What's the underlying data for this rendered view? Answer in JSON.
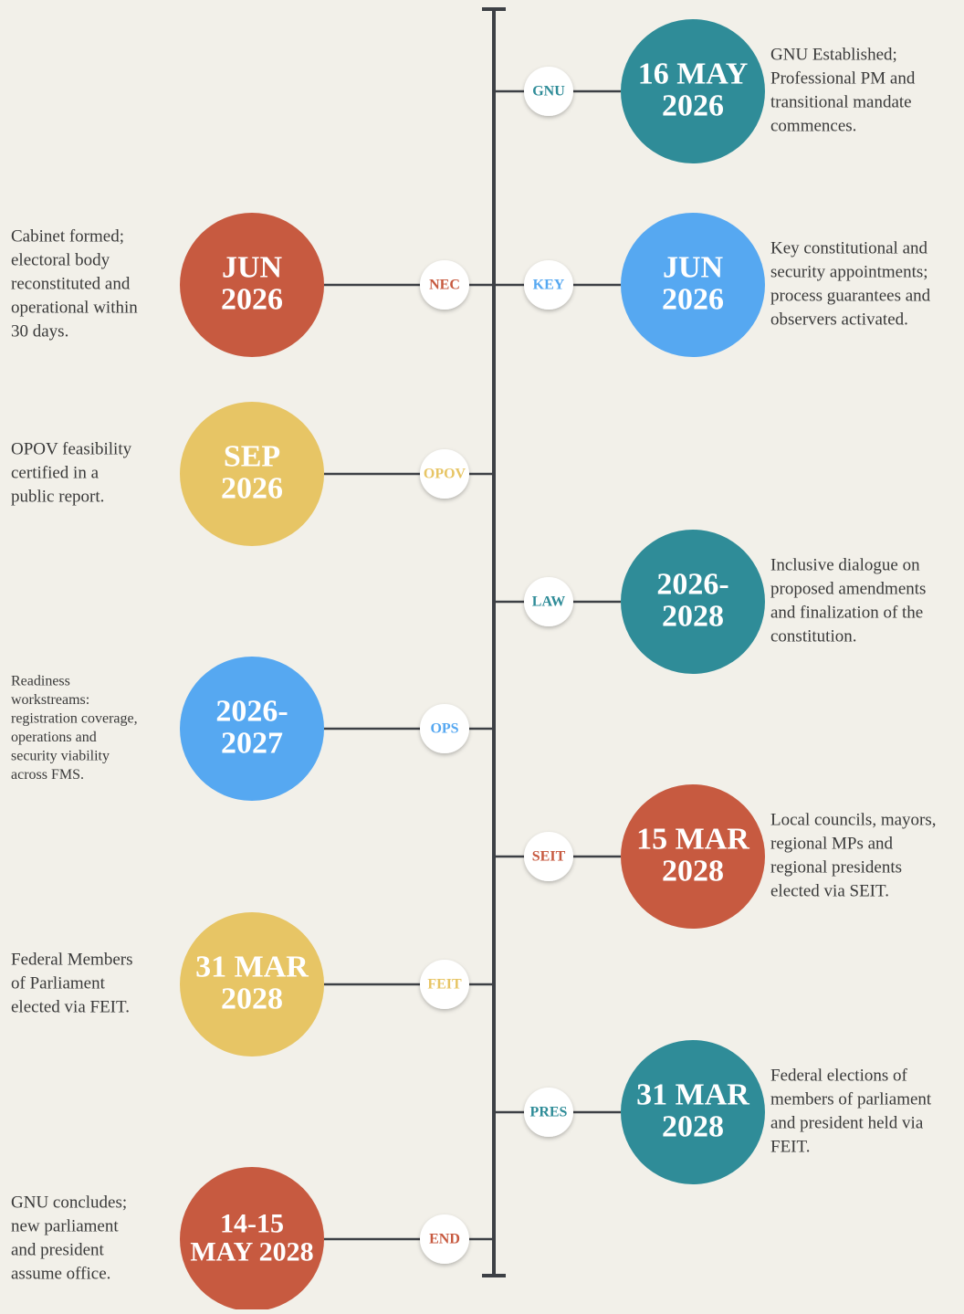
{
  "events": [
    {
      "date": [
        "16 MAY",
        "2026"
      ],
      "tag": "GNU",
      "color": "#2f8c98",
      "description": [
        "GNU Established;",
        "Professional PM and",
        "transitional mandate",
        "commences."
      ]
    },
    {
      "date": [
        "JUN",
        "2026"
      ],
      "tag": "NEC",
      "color": "#c75a40",
      "description": [
        "Cabinet formed;",
        "electoral body",
        "reconstituted and",
        "operational within",
        "30 days."
      ]
    },
    {
      "date": [
        "JUN",
        "2026"
      ],
      "tag": "KEY",
      "color": "#56a8f1",
      "description": [
        "Key constitutional and",
        "security appointments;",
        "process guarantees and",
        "observers activated."
      ]
    },
    {
      "date": [
        "SEP",
        "2026"
      ],
      "tag": "OPOV",
      "color": "#e7c565",
      "description": [
        "OPOV feasibility",
        "certified in a",
        "public report."
      ]
    },
    {
      "date": [
        "2026-",
        "2028"
      ],
      "tag": "LAW",
      "color": "#2f8c98",
      "description": [
        "Inclusive dialogue on",
        "proposed amendments",
        "and finalization of the",
        "constitution."
      ]
    },
    {
      "date": [
        "2026-",
        "2027"
      ],
      "tag": "OPS",
      "color": "#56a8f1",
      "description": [
        "Readiness",
        "workstreams:",
        "registration coverage,",
        "operations and",
        "security viability",
        "across FMS."
      ]
    },
    {
      "date": [
        "15 MAR",
        "2028"
      ],
      "tag": "SEIT",
      "color": "#c75a40",
      "description": [
        "Local councils, mayors,",
        "regional MPs and",
        "regional presidents",
        "elected via SEIT."
      ]
    },
    {
      "date": [
        "31 MAR",
        "2028"
      ],
      "tag": "FEIT",
      "color": "#e7c565",
      "description": [
        "Federal Members",
        "of Parliament",
        "elected via FEIT."
      ]
    },
    {
      "date": [
        "31 MAR",
        "2028"
      ],
      "tag": "PRES",
      "color": "#2f8c98",
      "description": [
        "Federal elections of",
        "members of  parliament",
        "and president held via",
        "FEIT."
      ]
    },
    {
      "date": [
        "14-15",
        "MAY 2028"
      ],
      "tag": "END",
      "color": "#c75a40",
      "description": [
        "GNU concludes;",
        "new parliament",
        "and president",
        "assume office."
      ]
    }
  ]
}
